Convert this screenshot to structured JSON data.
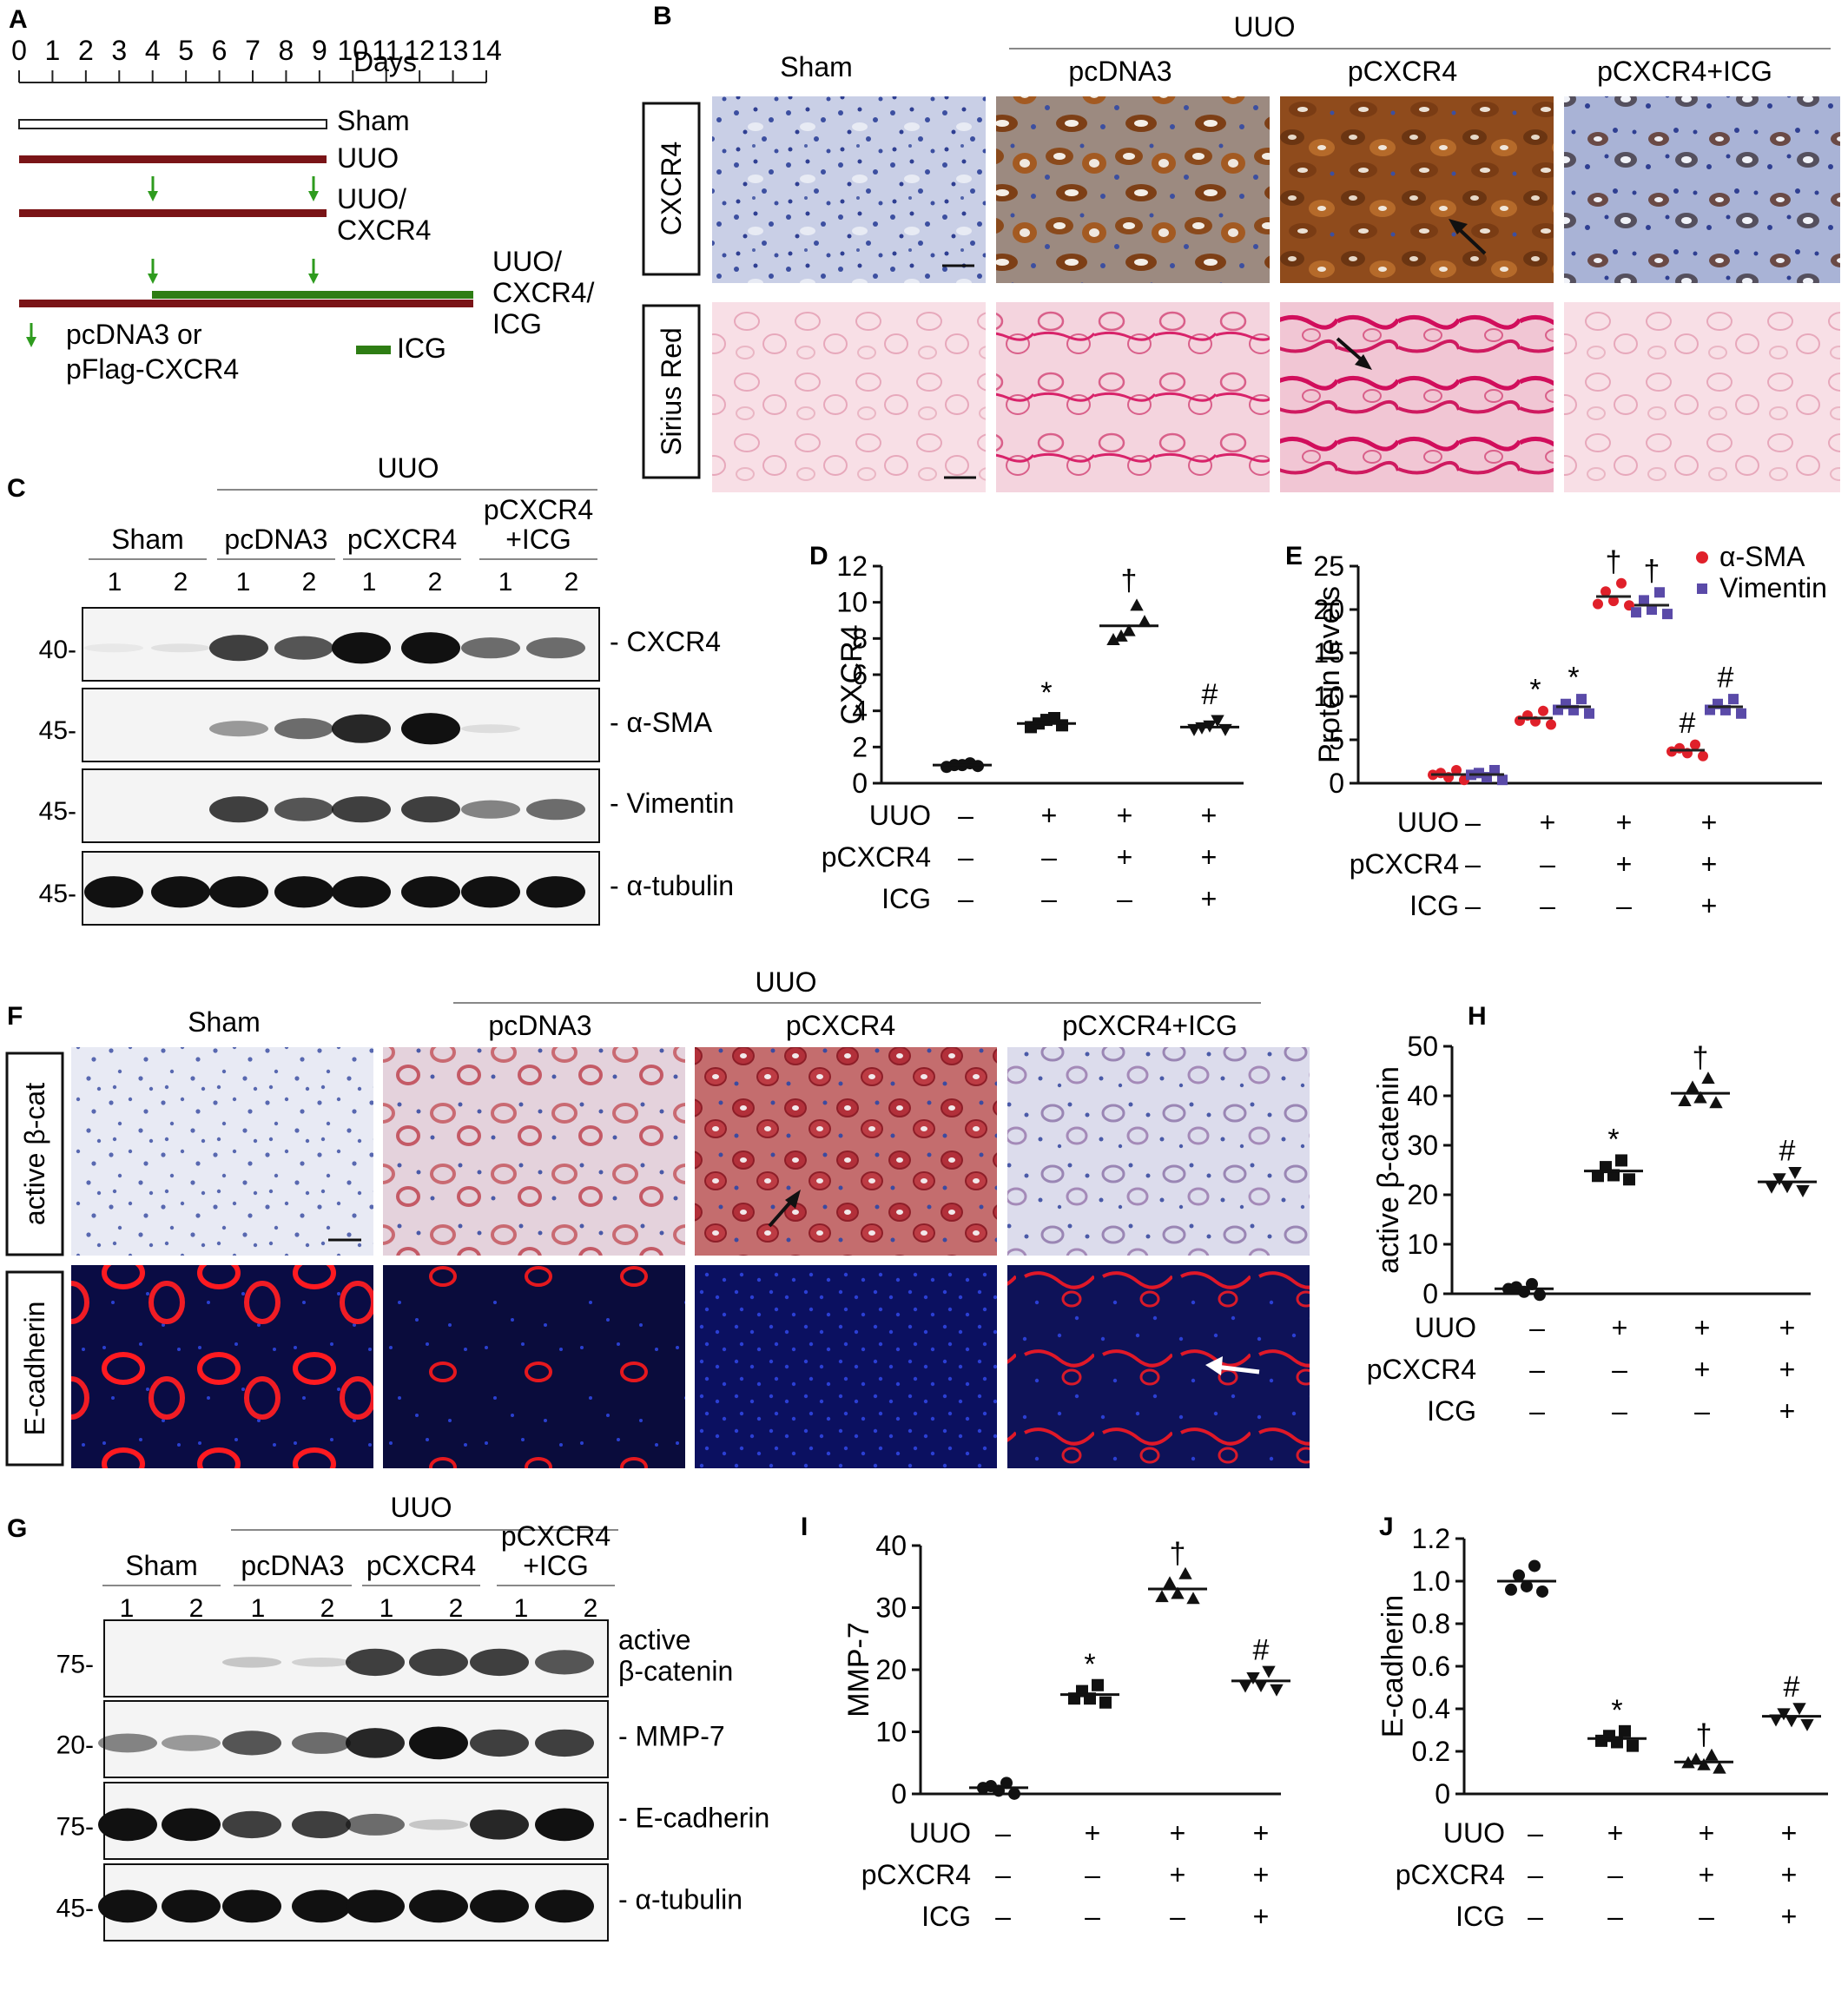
{
  "panels": {
    "A": {
      "letter": "A",
      "days_label": "Days",
      "day_ticks": [
        "0",
        "1",
        "2",
        "3",
        "4",
        "5",
        "6",
        "7",
        "8",
        "9",
        "10",
        "11",
        "12",
        "13",
        "14"
      ],
      "rows": [
        {
          "label_lines": [
            "Sham"
          ],
          "type": "open"
        },
        {
          "label_lines": [
            "UUO"
          ],
          "type": "uuo"
        },
        {
          "label_lines": [
            "UUO/",
            "CXCR4"
          ],
          "type": "uuo"
        },
        {
          "label_lines": [
            "UUO/",
            "CXCR4/",
            "ICG"
          ],
          "type": "uuo_icg"
        }
      ],
      "legend_arrow_lines": [
        "pcDNA3 or",
        "pFlag-CXCR4"
      ],
      "legend_bar": "ICG",
      "colors": {
        "uuo": "#7a1417",
        "icg": "#2e7d14",
        "arrow": "#2e9b1e"
      }
    },
    "B": {
      "letter": "B",
      "group_header": "UUO",
      "columns": [
        "Sham",
        "pcDNA3",
        "pCXCR4",
        "pCXCR4+ICG"
      ],
      "row_labels": [
        "CXCR4",
        "Sirius Red"
      ]
    },
    "C": {
      "letter": "C",
      "group_header": "UUO",
      "lanes": [
        {
          "label_lines": [
            "Sham"
          ],
          "nums": [
            "1",
            "2"
          ]
        },
        {
          "label_lines": [
            "pcDNA3"
          ],
          "nums": [
            "1",
            "2"
          ]
        },
        {
          "label_lines": [
            "pCXCR4"
          ],
          "nums": [
            "1",
            "2"
          ]
        },
        {
          "label_lines": [
            "pCXCR4",
            "+ICG"
          ],
          "nums": [
            "1",
            "2"
          ]
        }
      ],
      "blots": [
        {
          "name": "- CXCR4",
          "marker": "40-"
        },
        {
          "name": "- α-SMA",
          "marker": "45-"
        },
        {
          "name": "- Vimentin",
          "marker": "45-"
        },
        {
          "name": "- α-tubulin",
          "marker": "45-"
        }
      ]
    },
    "D": {
      "letter": "D",
      "chart_data": {
        "type": "scatter",
        "ylabel": "CXCR4",
        "ylim": [
          0,
          12
        ],
        "yticks": [
          "0",
          "2",
          "4",
          "6",
          "8",
          "10",
          "12"
        ],
        "groups": [
          "1",
          "2",
          "3",
          "4"
        ],
        "means": [
          1.0,
          3.3,
          8.7,
          3.1
        ],
        "points": [
          [
            0.9,
            1.0,
            1.0,
            1.1,
            0.95
          ],
          [
            3.1,
            3.3,
            3.5,
            3.6,
            3.2
          ],
          [
            7.9,
            8.1,
            8.4,
            9.8,
            8.9
          ],
          [
            3.0,
            3.1,
            3.2,
            3.5,
            3.0
          ]
        ],
        "markers": [
          "",
          "*",
          "†",
          "#"
        ],
        "conditions": [
          {
            "name": "UUO",
            "signs": [
              "–",
              "+",
              "+",
              "+"
            ]
          },
          {
            "name": "pCXCR4",
            "signs": [
              "–",
              "–",
              "+",
              "+"
            ]
          },
          {
            "name": "ICG",
            "signs": [
              "–",
              "–",
              "–",
              "+"
            ]
          }
        ]
      }
    },
    "E": {
      "letter": "E",
      "chart_data": {
        "type": "scatter",
        "ylabel": "Protein levels",
        "ylim": [
          0,
          25
        ],
        "yticks": [
          "0",
          "5",
          "10",
          "15",
          "20",
          "25"
        ],
        "series": [
          {
            "name": "α-SMA",
            "color": "#e0202a",
            "means": [
              1.0,
              7.5,
              21.5,
              3.8
            ],
            "markers": [
              "",
              "*",
              "†",
              "#"
            ]
          },
          {
            "name": "Vimentin",
            "color": "#5a4aa8",
            "means": [
              1.0,
              8.8,
              20.5,
              8.8
            ],
            "markers": [
              "",
              "*",
              "†",
              "#"
            ]
          }
        ],
        "conditions": [
          {
            "name": "UUO",
            "signs": [
              "–",
              "+",
              "+",
              "+"
            ]
          },
          {
            "name": "pCXCR4",
            "signs": [
              "–",
              "–",
              "+",
              "+"
            ]
          },
          {
            "name": "ICG",
            "signs": [
              "–",
              "–",
              "–",
              "+"
            ]
          }
        ]
      }
    },
    "F": {
      "letter": "F",
      "group_header": "UUO",
      "columns": [
        "Sham",
        "pcDNA3",
        "pCXCR4",
        "pCXCR4+ICG"
      ],
      "row_labels": [
        "active β-cat",
        "E-cadherin"
      ]
    },
    "G": {
      "letter": "G",
      "group_header": "UUO",
      "lanes": [
        {
          "label_lines": [
            "Sham"
          ],
          "nums": [
            "1",
            "2"
          ]
        },
        {
          "label_lines": [
            "pcDNA3"
          ],
          "nums": [
            "1",
            "2"
          ]
        },
        {
          "label_lines": [
            "pCXCR4"
          ],
          "nums": [
            "1",
            "2"
          ]
        },
        {
          "label_lines": [
            "pCXCR4",
            "+ICG"
          ],
          "nums": [
            "1",
            "2"
          ]
        }
      ],
      "blots": [
        {
          "name_lines": [
            "active",
            "β-catenin"
          ],
          "marker": "75-"
        },
        {
          "name_lines": [
            "- MMP-7"
          ],
          "marker": "20-"
        },
        {
          "name_lines": [
            "- E-cadherin"
          ],
          "marker": "75-"
        },
        {
          "name_lines": [
            "- α-tubulin"
          ],
          "marker": "45-"
        }
      ]
    },
    "H": {
      "letter": "H",
      "chart_data": {
        "type": "scatter",
        "ylabel": "active β-catenin",
        "ylim": [
          0,
          50
        ],
        "yticks": [
          "0",
          "10",
          "20",
          "30",
          "40",
          "50"
        ],
        "means": [
          1.0,
          24.8,
          40.5,
          22.6
        ],
        "markers": [
          "",
          "*",
          "†",
          "#"
        ],
        "conditions": [
          {
            "name": "UUO",
            "signs": [
              "–",
              "+",
              "+",
              "+"
            ]
          },
          {
            "name": "pCXCR4",
            "signs": [
              "–",
              "–",
              "+",
              "+"
            ]
          },
          {
            "name": "ICG",
            "signs": [
              "–",
              "–",
              "–",
              "+"
            ]
          }
        ]
      }
    },
    "I": {
      "letter": "I",
      "chart_data": {
        "type": "scatter",
        "ylabel": "MMP-7",
        "ylim": [
          0,
          40
        ],
        "yticks": [
          "0",
          "10",
          "20",
          "30",
          "40"
        ],
        "means": [
          1.0,
          16.0,
          33.0,
          18.2
        ],
        "markers": [
          "",
          "*",
          "†",
          "#"
        ],
        "conditions": [
          {
            "name": "UUO",
            "signs": [
              "–",
              "+",
              "+",
              "+"
            ]
          },
          {
            "name": "pCXCR4",
            "signs": [
              "–",
              "–",
              "+",
              "+"
            ]
          },
          {
            "name": "ICG",
            "signs": [
              "–",
              "–",
              "–",
              "+"
            ]
          }
        ]
      }
    },
    "J": {
      "letter": "J",
      "chart_data": {
        "type": "scatter",
        "ylabel": "E-cadherin",
        "ylim": [
          0,
          1.2
        ],
        "yticks": [
          "0",
          "0.2",
          "0.4",
          "0.6",
          "0.8",
          "1.0",
          "1.2"
        ],
        "means": [
          1.0,
          0.26,
          0.15,
          0.365
        ],
        "markers": [
          "",
          "*",
          "†",
          "#"
        ],
        "conditions": [
          {
            "name": "UUO",
            "signs": [
              "–",
              "+",
              "+",
              "+"
            ]
          },
          {
            "name": "pCXCR4",
            "signs": [
              "–",
              "–",
              "+",
              "+"
            ]
          },
          {
            "name": "ICG",
            "signs": [
              "–",
              "–",
              "–",
              "+"
            ]
          }
        ]
      }
    }
  }
}
